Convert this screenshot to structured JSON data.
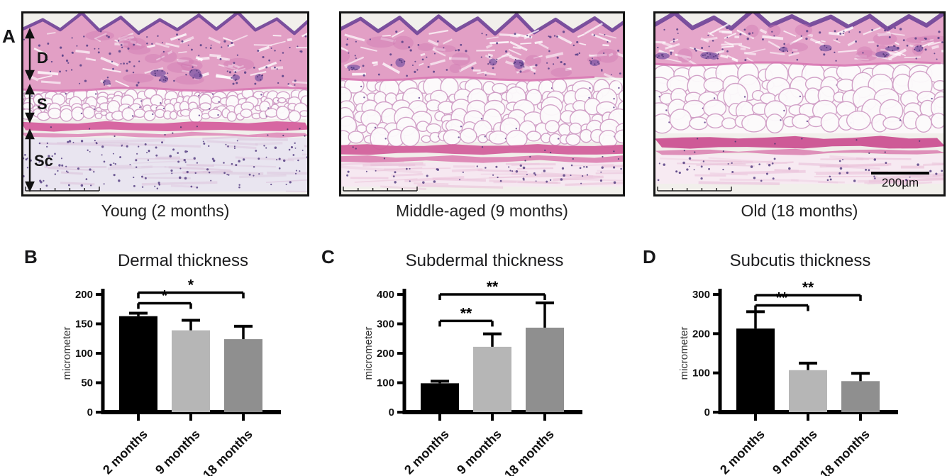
{
  "panel_a": {
    "label": "A",
    "layer_labels": {
      "dermis": "D",
      "subdermal": "S",
      "subcutis": "Sc"
    },
    "images": [
      {
        "caption": "Young (2 months)"
      },
      {
        "caption": "Middle-aged (9 months)"
      },
      {
        "caption": "Old (18 months)"
      }
    ],
    "scale_bar_label": "200µm"
  },
  "chart_data": [
    {
      "type": "bar",
      "panel_label": "B",
      "title": "Dermal thickness",
      "ylabel": "micrometer",
      "categories": [
        "2 months",
        "9 months",
        "18 months"
      ],
      "values": [
        163,
        139,
        124
      ],
      "errors": [
        5,
        17,
        22
      ],
      "ylim": [
        0,
        200
      ],
      "ytick": 50,
      "bar_colors": [
        "#000000",
        "#b6b6b6",
        "#8f8f8f"
      ],
      "comparisons": [
        {
          "a": 0,
          "b": 1,
          "y": 185,
          "label": "*"
        },
        {
          "a": 0,
          "b": 2,
          "y": 203,
          "label": "*"
        }
      ]
    },
    {
      "type": "bar",
      "panel_label": "C",
      "title": "Subdermal thickness",
      "ylabel": "micrometer",
      "categories": [
        "2 months",
        "9 months",
        "18 months"
      ],
      "values": [
        98,
        222,
        287
      ],
      "errors": [
        7,
        44,
        84
      ],
      "ylim": [
        0,
        400
      ],
      "ytick": 100,
      "bar_colors": [
        "#000000",
        "#b6b6b6",
        "#8f8f8f"
      ],
      "comparisons": [
        {
          "a": 0,
          "b": 1,
          "y": 310,
          "label": "**"
        },
        {
          "a": 0,
          "b": 2,
          "y": 400,
          "label": "**"
        }
      ]
    },
    {
      "type": "bar",
      "panel_label": "D",
      "title": "Subcutis thickness",
      "ylabel": "micrometer",
      "categories": [
        "2 months",
        "9 months",
        "18 months"
      ],
      "values": [
        213,
        107,
        79
      ],
      "errors": [
        43,
        18,
        20
      ],
      "ylim": [
        0,
        300
      ],
      "ytick": 100,
      "bar_colors": [
        "#000000",
        "#b6b6b6",
        "#8f8f8f"
      ],
      "comparisons": [
        {
          "a": 0,
          "b": 1,
          "y": 272,
          "label": "**"
        },
        {
          "a": 0,
          "b": 2,
          "y": 298,
          "label": "**"
        }
      ]
    }
  ]
}
